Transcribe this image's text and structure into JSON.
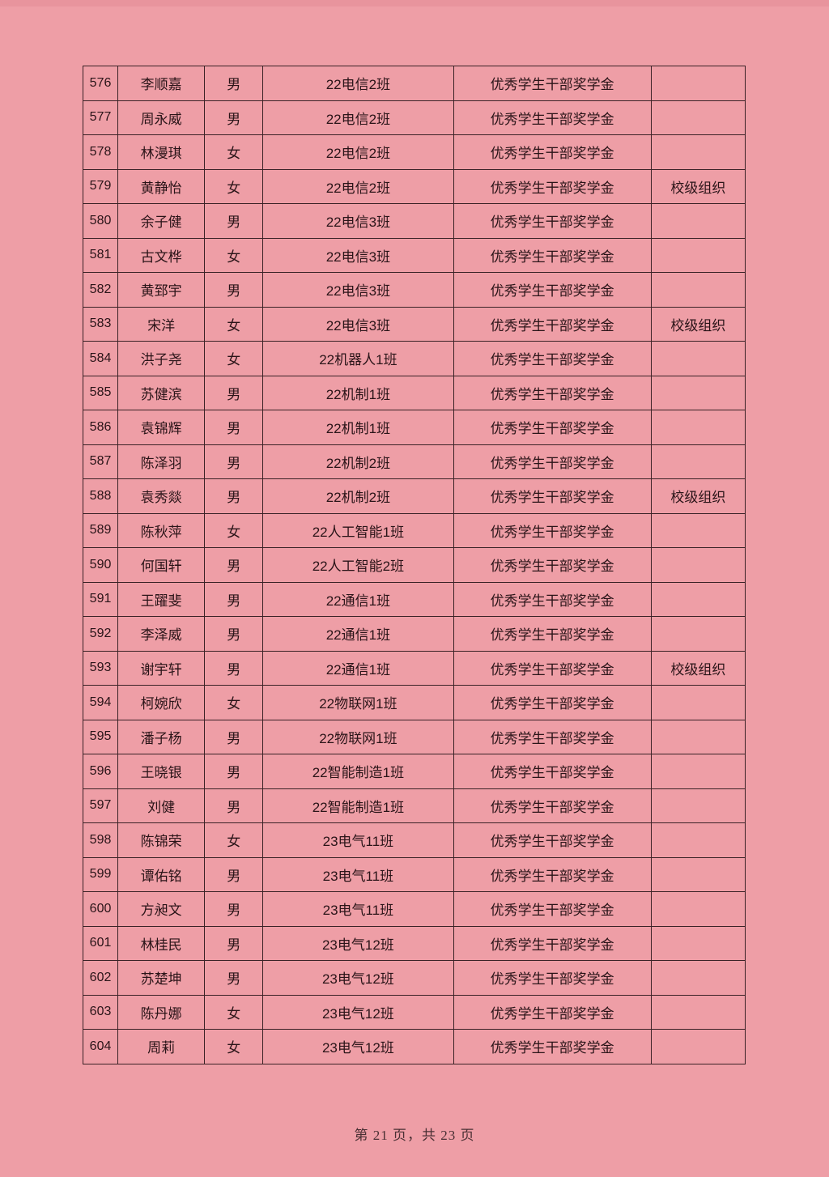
{
  "table": {
    "rows": [
      [
        "576",
        "李顺嘉",
        "男",
        "22电信2班",
        "优秀学生干部奖学金",
        ""
      ],
      [
        "577",
        "周永威",
        "男",
        "22电信2班",
        "优秀学生干部奖学金",
        ""
      ],
      [
        "578",
        "林漫琪",
        "女",
        "22电信2班",
        "优秀学生干部奖学金",
        ""
      ],
      [
        "579",
        "黄静怡",
        "女",
        "22电信2班",
        "优秀学生干部奖学金",
        "校级组织"
      ],
      [
        "580",
        "余子健",
        "男",
        "22电信3班",
        "优秀学生干部奖学金",
        ""
      ],
      [
        "581",
        "古文桦",
        "女",
        "22电信3班",
        "优秀学生干部奖学金",
        ""
      ],
      [
        "582",
        "黄郅宇",
        "男",
        "22电信3班",
        "优秀学生干部奖学金",
        ""
      ],
      [
        "583",
        "宋洋",
        "女",
        "22电信3班",
        "优秀学生干部奖学金",
        "校级组织"
      ],
      [
        "584",
        "洪子尧",
        "女",
        "22机器人1班",
        "优秀学生干部奖学金",
        ""
      ],
      [
        "585",
        "苏健滨",
        "男",
        "22机制1班",
        "优秀学生干部奖学金",
        ""
      ],
      [
        "586",
        "袁锦辉",
        "男",
        "22机制1班",
        "优秀学生干部奖学金",
        ""
      ],
      [
        "587",
        "陈泽羽",
        "男",
        "22机制2班",
        "优秀学生干部奖学金",
        ""
      ],
      [
        "588",
        "袁秀燚",
        "男",
        "22机制2班",
        "优秀学生干部奖学金",
        "校级组织"
      ],
      [
        "589",
        "陈秋萍",
        "女",
        "22人工智能1班",
        "优秀学生干部奖学金",
        ""
      ],
      [
        "590",
        "何国轩",
        "男",
        "22人工智能2班",
        "优秀学生干部奖学金",
        ""
      ],
      [
        "591",
        "王躍斐",
        "男",
        "22通信1班",
        "优秀学生干部奖学金",
        ""
      ],
      [
        "592",
        "李泽威",
        "男",
        "22通信1班",
        "优秀学生干部奖学金",
        ""
      ],
      [
        "593",
        "谢宇轩",
        "男",
        "22通信1班",
        "优秀学生干部奖学金",
        "校级组织"
      ],
      [
        "594",
        "柯婉欣",
        "女",
        "22物联网1班",
        "优秀学生干部奖学金",
        ""
      ],
      [
        "595",
        "潘子杨",
        "男",
        "22物联网1班",
        "优秀学生干部奖学金",
        ""
      ],
      [
        "596",
        "王晓银",
        "男",
        "22智能制造1班",
        "优秀学生干部奖学金",
        ""
      ],
      [
        "597",
        "刘健",
        "男",
        "22智能制造1班",
        "优秀学生干部奖学金",
        ""
      ],
      [
        "598",
        "陈锦荣",
        "女",
        "23电气11班",
        "优秀学生干部奖学金",
        ""
      ],
      [
        "599",
        "谭佑铭",
        "男",
        "23电气11班",
        "优秀学生干部奖学金",
        ""
      ],
      [
        "600",
        "方昶文",
        "男",
        "23电气11班",
        "优秀学生干部奖学金",
        ""
      ],
      [
        "601",
        "林桂民",
        "男",
        "23电气12班",
        "优秀学生干部奖学金",
        ""
      ],
      [
        "602",
        "苏楚坤",
        "男",
        "23电气12班",
        "优秀学生干部奖学金",
        ""
      ],
      [
        "603",
        "陈丹娜",
        "女",
        "23电气12班",
        "优秀学生干部奖学金",
        ""
      ],
      [
        "604",
        "周莉",
        "女",
        "23电气12班",
        "优秀学生干部奖学金",
        ""
      ]
    ]
  },
  "footer": {
    "page_label": "第 21 页，共 23 页"
  },
  "colors": {
    "paper": "#ee9ea6",
    "ink": "#2a1418"
  }
}
